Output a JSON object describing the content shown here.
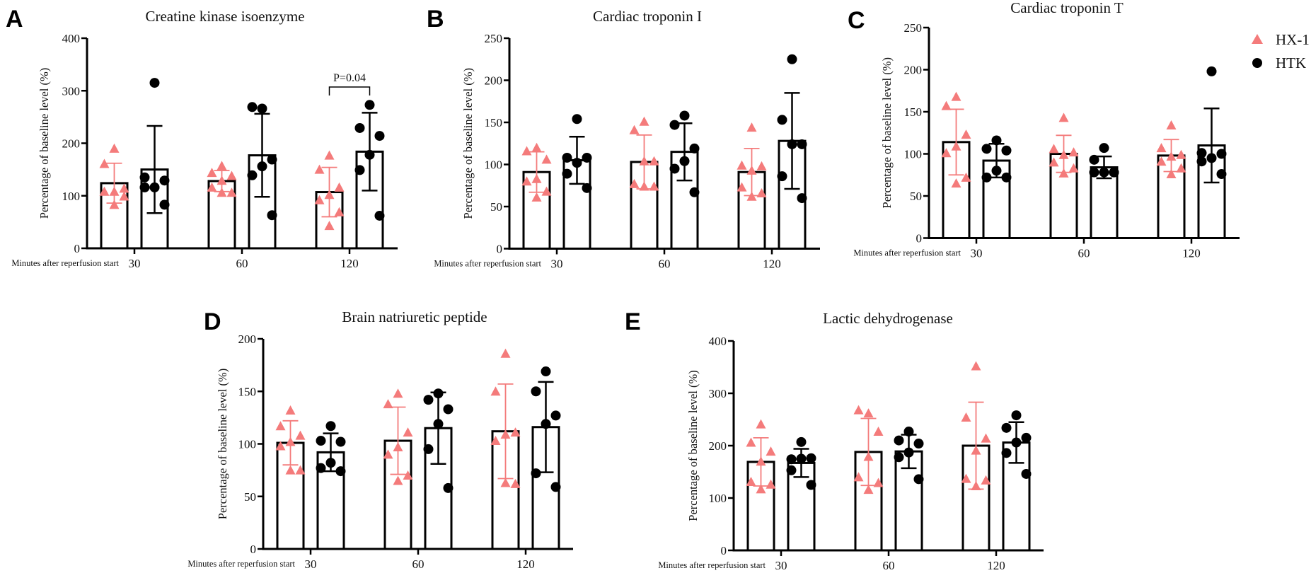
{
  "colors": {
    "hx1": "#f47b7b",
    "htk": "#000000",
    "bar_edge": "#000000"
  },
  "legend": [
    {
      "label": "HX-1",
      "marker": "triangle"
    },
    {
      "label": "HTK",
      "marker": "circle"
    }
  ],
  "chart_data": [
    {
      "panel": "A",
      "type": "bar",
      "title": "Creatine kinase isoenzyme",
      "ylabel": "Percentage of baseline level (%)",
      "xlabel": "Minutes after reperfusion start",
      "ylim": [
        0,
        400
      ],
      "yticks": [
        0,
        100,
        200,
        300,
        400
      ],
      "categories": [
        "30",
        "60",
        "120"
      ],
      "series": [
        {
          "name": "HX-1",
          "mean": [
            124,
            128,
            107
          ],
          "sd": [
            38,
            20,
            47
          ],
          "points": [
            [
              190,
              161,
              114,
              108,
              108,
              99,
              83
            ],
            [
              157,
              144,
              138,
              129,
              116,
              106,
              106
            ],
            [
              177,
              150,
              116,
              102,
              92,
              69,
              43
            ]
          ]
        },
        {
          "name": "HTK",
          "mean": [
            150,
            177,
            184
          ],
          "sd": [
            83,
            79,
            74
          ],
          "points": [
            [
              315,
              135,
              129,
              116,
              116,
              83
            ],
            [
              266,
              269,
              169,
              156,
              139,
              63
            ],
            [
              273,
              229,
              214,
              178,
              149,
              62
            ]
          ]
        }
      ],
      "annotations": [
        {
          "text": "P=0.04",
          "category": "120"
        }
      ]
    },
    {
      "panel": "B",
      "type": "bar",
      "title": "Cardiac troponin I",
      "ylabel": "Percentage of baseline level (%)",
      "xlabel": "Minutes after reperfusion start",
      "ylim": [
        0,
        250
      ],
      "yticks": [
        0,
        50,
        100,
        150,
        200,
        250
      ],
      "categories": [
        "30",
        "60",
        "120"
      ],
      "series": [
        {
          "name": "HX-1",
          "mean": [
            91,
            103,
            91
          ],
          "sd": [
            24,
            32,
            28
          ],
          "points": [
            [
              120,
              116,
              106,
              83,
              80,
              68,
              61
            ],
            [
              151,
              141,
              104,
              104,
              77,
              74,
              74
            ],
            [
              144,
              99,
              98,
              93,
              73,
              66,
              62
            ]
          ]
        },
        {
          "name": "HTK",
          "mean": [
            105,
            115,
            128
          ],
          "sd": [
            28,
            34,
            57
          ],
          "points": [
            [
              154,
              108,
              108,
              102,
              89,
              72
            ],
            [
              158,
              147,
              119,
              104,
              95,
              67
            ],
            [
              225,
              153,
              124,
              124,
              86,
              60
            ]
          ]
        }
      ],
      "annotations": []
    },
    {
      "panel": "C",
      "type": "bar",
      "title": "Cardiac troponin T",
      "ylabel": "Percentage of baseline level (%)",
      "xlabel": "Minutes after reperfusion start",
      "ylim": [
        0,
        250
      ],
      "yticks": [
        0,
        50,
        100,
        150,
        200,
        250
      ],
      "categories": [
        "30",
        "60",
        "120"
      ],
      "series": [
        {
          "name": "HX-1",
          "mean": [
            114,
            100,
            98
          ],
          "sd": [
            39,
            22,
            19
          ],
          "points": [
            [
              168,
              157,
              123,
              109,
              101,
              72,
              65
            ],
            [
              143,
              106,
              102,
              99,
              90,
              83,
              77
            ],
            [
              134,
              107,
              99,
              97,
              91,
              83,
              76
            ]
          ]
        },
        {
          "name": "HTK",
          "mean": [
            92,
            84,
            110
          ],
          "sd": [
            20,
            13,
            44
          ],
          "points": [
            [
              116,
              106,
              104,
              80,
              72,
              72
            ],
            [
              107,
              93,
              78,
              78,
              78,
              78
            ],
            [
              198,
              101,
              100,
              95,
              91,
              76
            ]
          ]
        }
      ],
      "annotations": []
    },
    {
      "panel": "D",
      "type": "bar",
      "title": "Brain natriuretic peptide",
      "ylabel": "Percentage of baseline level (%)",
      "xlabel": "Minutes after reperfusion start",
      "ylim": [
        0,
        200
      ],
      "yticks": [
        0,
        50,
        100,
        150,
        200
      ],
      "categories": [
        "30",
        "60",
        "120"
      ],
      "series": [
        {
          "name": "HX-1",
          "mean": [
            101,
            103,
            112
          ],
          "sd": [
            21,
            32,
            45
          ],
          "points": [
            [
              132,
              117,
              108,
              102,
              98,
              75,
              75
            ],
            [
              148,
              138,
              111,
              97,
              90,
              70,
              65
            ],
            [
              186,
              150,
              111,
              109,
              103,
              62,
              63
            ]
          ]
        },
        {
          "name": "HTK",
          "mean": [
            92,
            115,
            116
          ],
          "sd": [
            18,
            34,
            43
          ],
          "points": [
            [
              117,
              103,
              102,
              82,
              77,
              74
            ],
            [
              148,
              142,
              133,
              119,
              95,
              58
            ],
            [
              169,
              150,
              127,
              119,
              72,
              59
            ]
          ]
        }
      ],
      "annotations": []
    },
    {
      "panel": "E",
      "type": "bar",
      "title": "Lactic dehydrogenase",
      "ylabel": "Percentage of baseline level (%)",
      "xlabel": "Minutes after reperfusion start",
      "ylim": [
        0,
        400
      ],
      "yticks": [
        0,
        100,
        200,
        300,
        400
      ],
      "categories": [
        "30",
        "60",
        "120"
      ],
      "series": [
        {
          "name": "HX-1",
          "mean": [
            169,
            188,
            200
          ],
          "sd": [
            46,
            64,
            83
          ],
          "points": [
            [
              241,
              206,
              189,
              170,
              131,
              126,
              117
            ],
            [
              262,
              268,
              227,
              179,
              140,
              129,
              116
            ],
            [
              352,
              254,
              214,
              191,
              137,
              134,
              123
            ]
          ]
        },
        {
          "name": "HTK",
          "mean": [
            167,
            189,
            206
          ],
          "sd": [
            27,
            32,
            39
          ],
          "points": [
            [
              207,
              174,
              176,
              175,
              153,
              125
            ],
            [
              227,
              210,
              204,
              187,
              178,
              136
            ],
            [
              258,
              234,
              215,
              206,
              186,
              146
            ]
          ]
        }
      ],
      "annotations": []
    }
  ]
}
